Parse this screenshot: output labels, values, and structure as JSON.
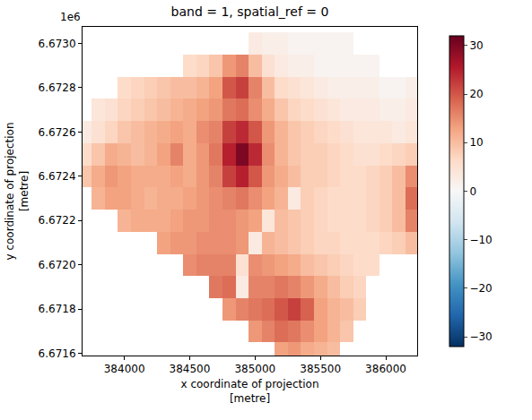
{
  "chart_data": {
    "type": "heatmap",
    "title": "band = 1, spatial_ref = 0",
    "xlabel": "x coordinate of projection\n[metre]",
    "ylabel": "y coordinate of projection\n[metre]",
    "annotations": [
      "1e6"
    ],
    "x": [
      383700,
      383800,
      383900,
      384000,
      384100,
      384200,
      384300,
      384400,
      384500,
      384600,
      384700,
      384800,
      384900,
      385000,
      385100,
      385200,
      385300,
      385400,
      385500,
      385600,
      385700,
      385800,
      385900,
      386000,
      386100,
      386200
    ],
    "y": [
      6671600,
      6671700,
      6671800,
      6671900,
      6672000,
      6672100,
      6672200,
      6672300,
      6672400,
      6672500,
      6672600,
      6672700,
      6672800,
      6672900,
      6673000
    ],
    "z": [
      [
        null,
        null,
        null,
        null,
        null,
        null,
        null,
        null,
        null,
        null,
        null,
        null,
        null,
        null,
        null,
        13,
        14,
        12,
        11,
        10,
        null,
        null,
        null,
        null,
        null,
        null
      ],
      [
        null,
        null,
        null,
        null,
        null,
        null,
        null,
        null,
        null,
        null,
        null,
        null,
        null,
        14,
        16,
        18,
        17,
        15,
        13,
        11,
        9,
        null,
        null,
        null,
        null,
        null
      ],
      [
        null,
        null,
        null,
        null,
        null,
        null,
        null,
        null,
        null,
        null,
        null,
        14,
        16,
        17,
        18,
        20,
        22,
        19,
        13,
        11,
        10,
        8,
        null,
        null,
        null,
        null
      ],
      [
        null,
        null,
        null,
        null,
        null,
        null,
        null,
        null,
        null,
        null,
        17,
        18,
        3,
        16,
        16,
        17,
        16,
        14,
        12,
        10,
        8,
        7,
        null,
        null,
        null,
        null
      ],
      [
        null,
        null,
        null,
        null,
        null,
        null,
        null,
        null,
        15,
        16,
        16,
        16,
        5,
        15,
        14,
        13,
        12,
        10,
        9,
        8,
        7,
        6,
        6,
        null,
        null,
        null
      ],
      [
        null,
        null,
        null,
        null,
        null,
        null,
        13,
        14,
        14,
        15,
        15,
        15,
        14,
        3,
        11,
        10,
        9,
        8,
        7,
        7,
        6,
        6,
        6,
        7,
        8,
        10
      ],
      [
        null,
        null,
        null,
        11,
        12,
        12,
        12,
        13,
        14,
        14,
        15,
        15,
        14,
        13,
        4,
        10,
        9,
        8,
        7,
        6,
        6,
        6,
        7,
        8,
        10,
        16
      ],
      [
        null,
        11,
        13,
        13,
        12,
        11,
        12,
        12,
        13,
        14,
        15,
        16,
        17,
        15,
        13,
        11,
        3,
        8,
        7,
        6,
        6,
        6,
        7,
        8,
        10,
        18
      ],
      [
        9,
        12,
        14,
        13,
        12,
        12,
        12,
        13,
        12,
        14,
        16,
        22,
        25,
        20,
        14,
        12,
        10,
        8,
        8,
        7,
        6,
        6,
        7,
        8,
        10,
        15
      ],
      [
        6,
        9,
        12,
        11,
        10,
        11,
        13,
        16,
        12,
        14,
        17,
        25,
        30,
        24,
        15,
        11,
        9,
        8,
        8,
        7,
        6,
        5,
        5,
        6,
        7,
        8
      ],
      [
        3,
        5,
        7,
        9,
        10,
        11,
        12,
        13,
        12,
        15,
        16,
        22,
        24,
        20,
        14,
        11,
        9,
        8,
        7,
        6,
        5,
        4,
        4,
        4,
        3,
        4
      ],
      [
        null,
        4,
        5,
        7,
        8,
        9,
        10,
        11,
        12,
        13,
        14,
        17,
        18,
        15,
        12,
        9,
        7,
        6,
        5,
        4,
        3,
        3,
        3,
        2,
        2,
        3
      ],
      [
        null,
        null,
        null,
        6,
        7,
        8,
        9,
        10,
        10,
        11,
        13,
        20,
        22,
        16,
        10,
        6,
        5,
        4,
        3,
        2,
        2,
        2,
        2,
        1,
        1,
        2
      ],
      [
        null,
        null,
        null,
        null,
        null,
        null,
        null,
        null,
        6,
        7,
        9,
        14,
        16,
        10,
        5,
        3,
        2,
        2,
        1,
        1,
        1,
        1,
        1,
        null,
        null,
        null
      ],
      [
        null,
        null,
        null,
        null,
        null,
        null,
        null,
        null,
        null,
        null,
        null,
        null,
        null,
        3,
        2,
        2,
        1,
        1,
        1,
        1,
        1,
        null,
        null,
        null,
        null,
        null
      ]
    ],
    "xlim": [
      383680,
      386240
    ],
    "ylim": [
      6671590,
      6673075
    ],
    "xticks": [
      384000,
      384500,
      385000,
      385500,
      386000
    ],
    "yticks": [
      {
        "value": 6671600,
        "label": "6.6716"
      },
      {
        "value": 6671800,
        "label": "6.6718"
      },
      {
        "value": 6672000,
        "label": "6.6720"
      },
      {
        "value": 6672200,
        "label": "6.6722"
      },
      {
        "value": 6672400,
        "label": "6.6724"
      },
      {
        "value": 6672600,
        "label": "6.6726"
      },
      {
        "value": 6672800,
        "label": "6.6728"
      },
      {
        "value": 6673000,
        "label": "6.6730"
      }
    ],
    "colorbar": {
      "range": [
        -32,
        32
      ],
      "ticks": [
        {
          "value": -30,
          "label": "−30"
        },
        {
          "value": -20,
          "label": "−20"
        },
        {
          "value": -10,
          "label": "−10"
        },
        0,
        10,
        20,
        30
      ]
    },
    "grid": false
  }
}
